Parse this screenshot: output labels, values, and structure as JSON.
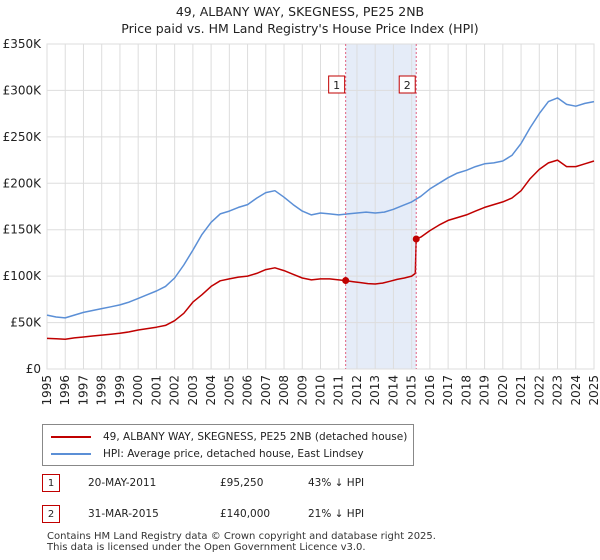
{
  "title_line1": "49, ALBANY WAY, SKEGNESS, PE25 2NB",
  "title_line2": "Price paid vs. HM Land Registry's House Price Index (HPI)",
  "colors": {
    "property": "#c00000",
    "hpi": "#5b8fd6",
    "shade": "#dce6f5",
    "grid": "#dddddd"
  },
  "chart_data": {
    "type": "line",
    "xlim": [
      1995,
      2025
    ],
    "ylim": [
      0,
      350000
    ],
    "x_ticks": [
      "1995",
      "1996",
      "1997",
      "1998",
      "1999",
      "2000",
      "2001",
      "2002",
      "2003",
      "2004",
      "2005",
      "2006",
      "2007",
      "2008",
      "2009",
      "2010",
      "2011",
      "2012",
      "2013",
      "2014",
      "2015",
      "2016",
      "2017",
      "2018",
      "2019",
      "2020",
      "2021",
      "2022",
      "2023",
      "2024",
      "2025"
    ],
    "y_ticks": [
      {
        "value": 0,
        "label": "£0"
      },
      {
        "value": 50000,
        "label": "£50K"
      },
      {
        "value": 100000,
        "label": "£100K"
      },
      {
        "value": 150000,
        "label": "£150K"
      },
      {
        "value": 200000,
        "label": "£200K"
      },
      {
        "value": 250000,
        "label": "£250K"
      },
      {
        "value": 300000,
        "label": "£300K"
      },
      {
        "value": 350000,
        "label": "£350K"
      }
    ],
    "shaded_region": [
      2011.38,
      2015.25
    ],
    "series": [
      {
        "name": "49, ALBANY WAY, SKEGNESS, PE25 2NB (detached house)",
        "color": "#c00000",
        "x": [
          1995.0,
          1995.5,
          1996.0,
          1996.5,
          1997.0,
          1997.5,
          1998.0,
          1998.5,
          1999.0,
          1999.5,
          2000.0,
          2000.5,
          2001.0,
          2001.5,
          2002.0,
          2002.5,
          2003.0,
          2003.5,
          2004.0,
          2004.5,
          2005.0,
          2005.5,
          2006.0,
          2006.5,
          2007.0,
          2007.5,
          2008.0,
          2008.5,
          2009.0,
          2009.5,
          2010.0,
          2010.5,
          2011.0,
          2011.38,
          2011.8,
          2012.2,
          2012.6,
          2013.0,
          2013.4,
          2013.8,
          2014.2,
          2014.6,
          2015.0,
          2015.2,
          2015.25,
          2015.5,
          2016.0,
          2016.5,
          2017.0,
          2017.5,
          2018.0,
          2018.5,
          2019.0,
          2019.5,
          2020.0,
          2020.5,
          2021.0,
          2021.5,
          2022.0,
          2022.5,
          2023.0,
          2023.5,
          2024.0,
          2024.5,
          2025.0
        ],
        "y": [
          33000,
          32500,
          32000,
          33500,
          34500,
          35500,
          36500,
          37500,
          38500,
          40000,
          42000,
          43500,
          45000,
          47000,
          52000,
          60000,
          72000,
          80000,
          89000,
          95000,
          97000,
          99000,
          100000,
          103000,
          107000,
          109000,
          106000,
          102000,
          98000,
          96000,
          97000,
          97000,
          96000,
          95250,
          94000,
          93000,
          92000,
          91500,
          92500,
          94500,
          96500,
          98000,
          100000,
          103000,
          140000,
          142000,
          149000,
          155000,
          160000,
          163000,
          166000,
          170000,
          174000,
          177000,
          180000,
          184000,
          192000,
          205000,
          215000,
          222000,
          225000,
          218000,
          218000,
          221000,
          224000
        ]
      },
      {
        "name": "HPI: Average price, detached house, East Lindsey",
        "color": "#5b8fd6",
        "x": [
          1995.0,
          1995.5,
          1996.0,
          1996.5,
          1997.0,
          1997.5,
          1998.0,
          1998.5,
          1999.0,
          1999.5,
          2000.0,
          2000.5,
          2001.0,
          2001.5,
          2002.0,
          2002.5,
          2003.0,
          2003.5,
          2004.0,
          2004.5,
          2005.0,
          2005.5,
          2006.0,
          2006.5,
          2007.0,
          2007.5,
          2008.0,
          2008.5,
          2009.0,
          2009.5,
          2010.0,
          2010.5,
          2011.0,
          2011.5,
          2012.0,
          2012.5,
          2013.0,
          2013.5,
          2014.0,
          2014.5,
          2015.0,
          2015.5,
          2016.0,
          2016.5,
          2017.0,
          2017.5,
          2018.0,
          2018.5,
          2019.0,
          2019.5,
          2020.0,
          2020.5,
          2021.0,
          2021.5,
          2022.0,
          2022.5,
          2023.0,
          2023.5,
          2024.0,
          2024.5,
          2025.0
        ],
        "y": [
          58000,
          56000,
          55000,
          58000,
          61000,
          63000,
          65000,
          67000,
          69000,
          72000,
          76000,
          80000,
          84000,
          89000,
          98000,
          112000,
          128000,
          145000,
          158000,
          167000,
          170000,
          174000,
          177000,
          184000,
          190000,
          192000,
          185000,
          177000,
          170000,
          166000,
          168000,
          167000,
          166000,
          167000,
          168000,
          169000,
          168000,
          169000,
          172000,
          176000,
          180000,
          186000,
          194000,
          200000,
          206000,
          211000,
          214000,
          218000,
          221000,
          222000,
          224000,
          230000,
          243000,
          260000,
          275000,
          288000,
          292000,
          285000,
          283000,
          286000,
          288000
        ]
      }
    ],
    "annotations": [
      {
        "label": "1",
        "x": 2011.38,
        "y": 95250
      },
      {
        "label": "2",
        "x": 2015.25,
        "y": 140000
      }
    ]
  },
  "legend": {
    "property_label": "49, ALBANY WAY, SKEGNESS, PE25 2NB (detached house)",
    "hpi_label": "HPI: Average price, detached house, East Lindsey"
  },
  "transactions": [
    {
      "num": "1",
      "date": "20-MAY-2011",
      "price": "£95,250",
      "hpi": "43% ↓ HPI"
    },
    {
      "num": "2",
      "date": "31-MAR-2015",
      "price": "£140,000",
      "hpi": "21% ↓ HPI"
    }
  ],
  "footer": {
    "line1": "Contains HM Land Registry data © Crown copyright and database right 2025.",
    "line2": "This data is licensed under the Open Government Licence v3.0."
  }
}
